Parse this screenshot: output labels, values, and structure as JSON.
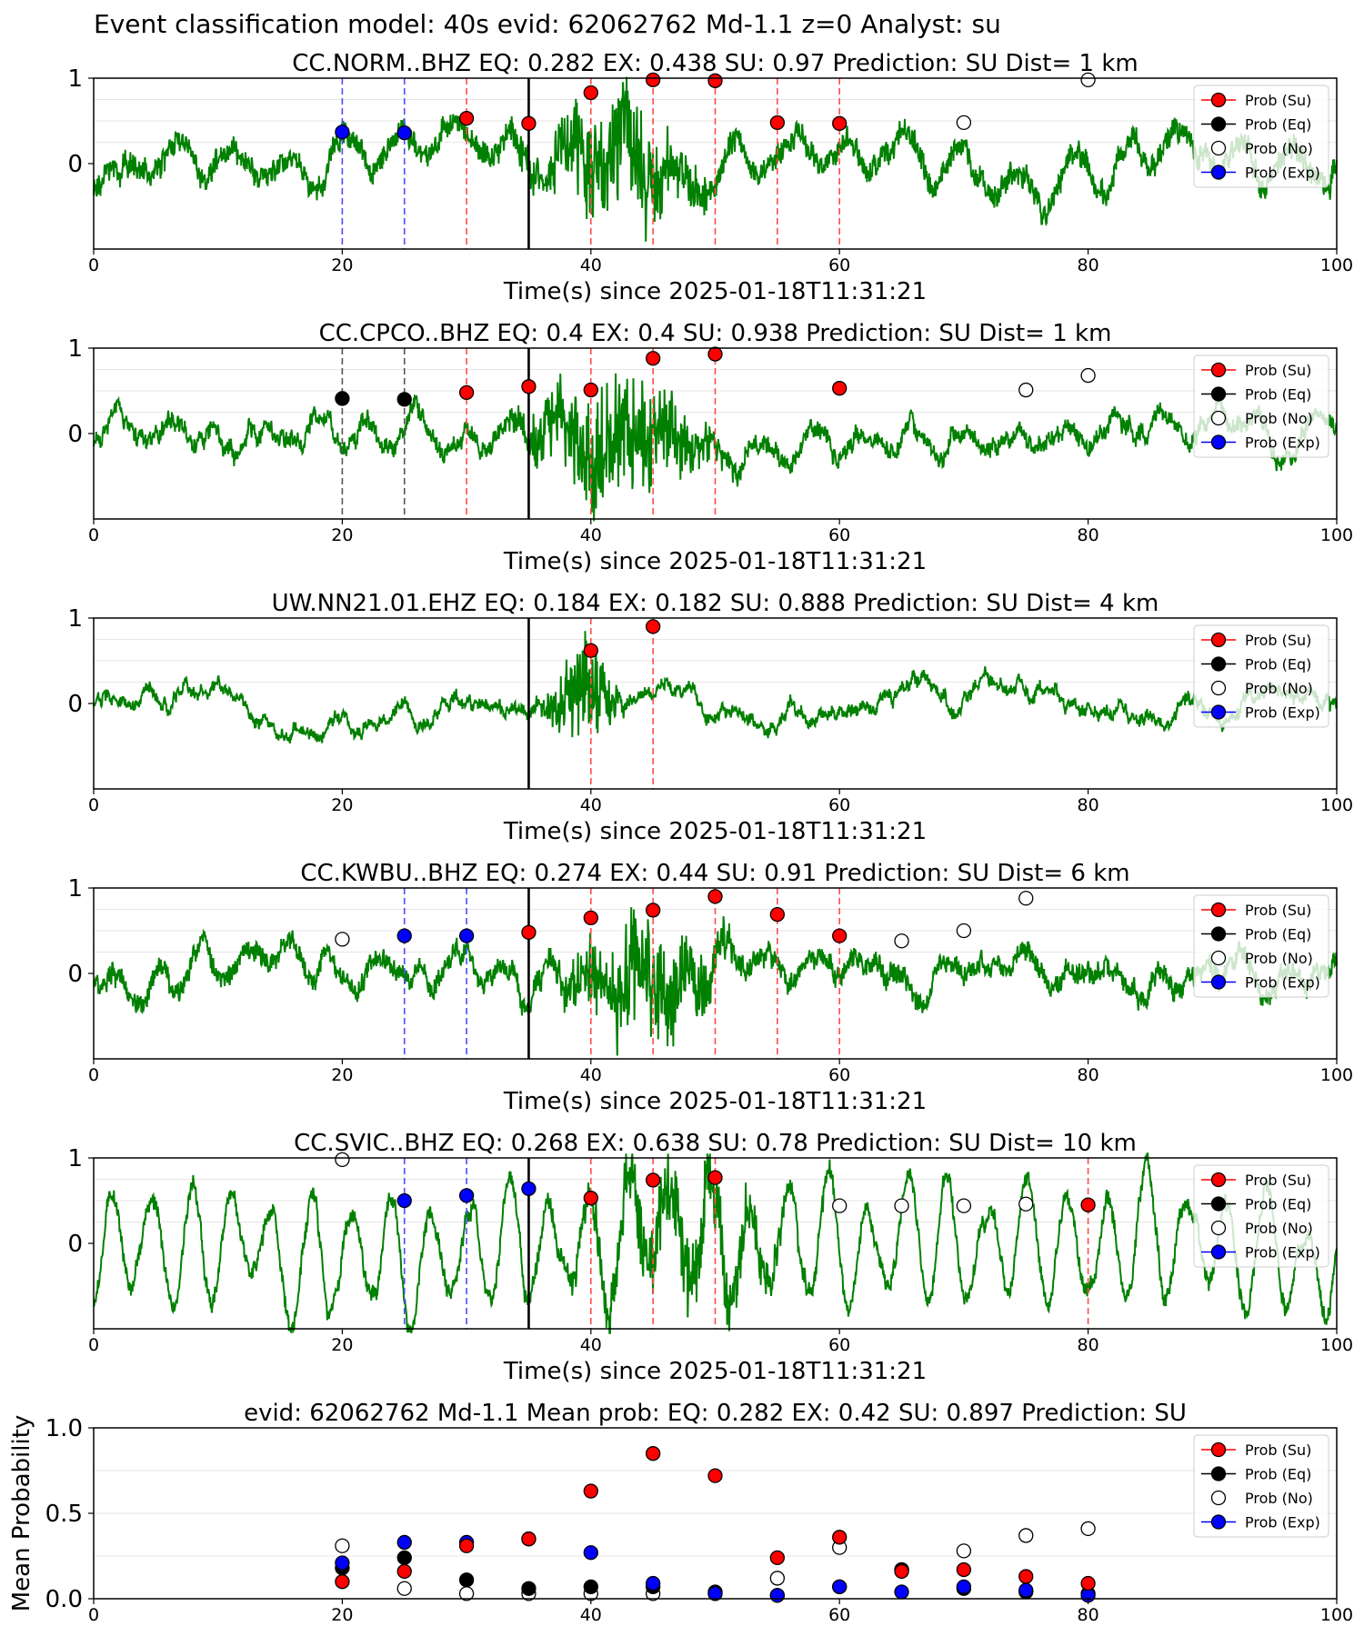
{
  "suptitle": "Event classification model: 40s evid: 62062762 Md-1.1 z=0 Analyst: su",
  "colors": {
    "trace": "#008000",
    "prob_su": "#ff0000",
    "prob_eq": "#000000",
    "prob_no": "#ffffff",
    "prob_exp": "#0000ff",
    "pick_su": "#ff4d4d",
    "pick_eq": "#555555",
    "pick_exp": "#4d4dff",
    "origin": "#000000"
  },
  "legend": [
    "Prob (Su)",
    "Prob (Eq)",
    "Prob (No)",
    "Prob (Exp)"
  ],
  "chart_data": [
    {
      "type": "line",
      "title": "CC.NORM..BHZ   EQ: 0.282  EX: 0.438  SU: 0.97   Prediction: SU    Dist= 1 km",
      "xlabel": "Time(s) since 2025-01-18T11:31:21",
      "ylabel": "",
      "xlim": [
        0,
        100
      ],
      "ylim": [
        -1,
        1
      ],
      "xticks": [
        "0",
        "20",
        "40",
        "60",
        "80",
        "100"
      ],
      "yticks": [
        "0",
        "1"
      ],
      "origin_time": 35,
      "waveform": {
        "noise": 0.12,
        "lf": 0.18,
        "lf_period": 4.5,
        "burst_center": 42,
        "burst_amp": 0.85,
        "burst_width": 5.5,
        "burst_freq": 1.6,
        "seed": 11
      },
      "picks": [
        {
          "t": 20,
          "class": "exp"
        },
        {
          "t": 25,
          "class": "exp"
        },
        {
          "t": 30,
          "class": "su"
        },
        {
          "t": 40,
          "class": "su"
        },
        {
          "t": 45,
          "class": "su"
        },
        {
          "t": 50,
          "class": "su"
        },
        {
          "t": 55,
          "class": "su"
        },
        {
          "t": 60,
          "class": "su"
        }
      ],
      "series": [
        {
          "name": "Prob (Su)",
          "x": [
            30,
            35,
            40,
            45,
            50,
            55,
            60
          ],
          "y": [
            0.53,
            0.47,
            0.83,
            0.98,
            0.97,
            0.48,
            0.47
          ]
        },
        {
          "name": "Prob (Eq)",
          "x": [],
          "y": []
        },
        {
          "name": "Prob (No)",
          "x": [
            70,
            80
          ],
          "y": [
            0.48,
            0.98
          ]
        },
        {
          "name": "Prob (Exp)",
          "x": [
            20,
            25
          ],
          "y": [
            0.37,
            0.36
          ]
        }
      ]
    },
    {
      "type": "line",
      "title": "CC.CPCO..BHZ   EQ: 0.4  EX: 0.4  SU: 0.938   Prediction: SU    Dist= 1 km",
      "xlabel": "Time(s) since 2025-01-18T11:31:21",
      "ylabel": "",
      "xlim": [
        0,
        100
      ],
      "ylim": [
        -1,
        1
      ],
      "xticks": [
        "0",
        "20",
        "40",
        "60",
        "80",
        "100"
      ],
      "yticks": [
        "0",
        "1"
      ],
      "origin_time": 35,
      "waveform": {
        "noise": 0.08,
        "lf": 0.1,
        "lf_period": 4.0,
        "burst_center": 42,
        "burst_amp": 0.9,
        "burst_width": 6,
        "burst_freq": 1.6,
        "seed": 23
      },
      "picks": [
        {
          "t": 20,
          "class": "eq"
        },
        {
          "t": 25,
          "class": "eq"
        },
        {
          "t": 30,
          "class": "su"
        },
        {
          "t": 40,
          "class": "su"
        },
        {
          "t": 45,
          "class": "su"
        },
        {
          "t": 50,
          "class": "su"
        }
      ],
      "series": [
        {
          "name": "Prob (Su)",
          "x": [
            30,
            35,
            40,
            45,
            50,
            60
          ],
          "y": [
            0.48,
            0.55,
            0.51,
            0.88,
            0.93,
            0.53
          ]
        },
        {
          "name": "Prob (Eq)",
          "x": [
            20,
            25
          ],
          "y": [
            0.41,
            0.4
          ]
        },
        {
          "name": "Prob (No)",
          "x": [
            75,
            80
          ],
          "y": [
            0.51,
            0.68
          ]
        },
        {
          "name": "Prob (Exp)",
          "x": [],
          "y": []
        }
      ]
    },
    {
      "type": "line",
      "title": "UW.NN21.01.EHZ   EQ: 0.184  EX: 0.182  SU: 0.888   Prediction: SU    Dist= 4 km",
      "xlabel": "Time(s) since 2025-01-18T11:31:21",
      "ylabel": "",
      "xlim": [
        0,
        100
      ],
      "ylim": [
        -1,
        1
      ],
      "xticks": [
        "0",
        "20",
        "40",
        "60",
        "80",
        "100"
      ],
      "yticks": [
        "0",
        "1"
      ],
      "origin_time": 35,
      "waveform": {
        "noise": 0.05,
        "lf": 0.0,
        "lf_period": 4.0,
        "burst_center": 39.5,
        "burst_amp": 0.75,
        "burst_width": 2.5,
        "burst_freq": 2.5,
        "seed": 37
      },
      "picks": [
        {
          "t": 40,
          "class": "su"
        },
        {
          "t": 45,
          "class": "su"
        }
      ],
      "series": [
        {
          "name": "Prob (Su)",
          "x": [
            40,
            45
          ],
          "y": [
            0.62,
            0.9
          ]
        },
        {
          "name": "Prob (Eq)",
          "x": [],
          "y": []
        },
        {
          "name": "Prob (No)",
          "x": [],
          "y": []
        },
        {
          "name": "Prob (Exp)",
          "x": [],
          "y": []
        }
      ]
    },
    {
      "type": "line",
      "title": "CC.KWBU..BHZ   EQ: 0.274  EX: 0.44  SU: 0.91   Prediction: SU    Dist= 6 km",
      "xlabel": "Time(s) since 2025-01-18T11:31:21",
      "ylabel": "",
      "xlim": [
        0,
        100
      ],
      "ylim": [
        -1,
        1
      ],
      "xticks": [
        "0",
        "20",
        "40",
        "60",
        "80",
        "100"
      ],
      "yticks": [
        "0",
        "1"
      ],
      "origin_time": 35,
      "waveform": {
        "noise": 0.1,
        "lf": 0.12,
        "lf_period": 3.5,
        "burst_center": 44,
        "burst_amp": 0.85,
        "burst_width": 5.5,
        "burst_freq": 1.6,
        "seed": 51
      },
      "picks": [
        {
          "t": 25,
          "class": "exp"
        },
        {
          "t": 30,
          "class": "exp"
        },
        {
          "t": 40,
          "class": "su"
        },
        {
          "t": 45,
          "class": "su"
        },
        {
          "t": 50,
          "class": "su"
        },
        {
          "t": 55,
          "class": "su"
        },
        {
          "t": 60,
          "class": "su"
        }
      ],
      "series": [
        {
          "name": "Prob (Su)",
          "x": [
            35,
            40,
            45,
            50,
            55,
            60
          ],
          "y": [
            0.48,
            0.65,
            0.74,
            0.9,
            0.69,
            0.44
          ]
        },
        {
          "name": "Prob (Eq)",
          "x": [],
          "y": []
        },
        {
          "name": "Prob (No)",
          "x": [
            20,
            65,
            70,
            75
          ],
          "y": [
            0.4,
            0.38,
            0.5,
            0.88
          ]
        },
        {
          "name": "Prob (Exp)",
          "x": [
            25,
            30
          ],
          "y": [
            0.44,
            0.44
          ]
        }
      ]
    },
    {
      "type": "line",
      "title": "CC.SVIC..BHZ   EQ: 0.268  EX: 0.638  SU: 0.78   Prediction: SU    Dist= 10 km",
      "xlabel": "Time(s) since 2025-01-18T11:31:21",
      "ylabel": "",
      "xlim": [
        0,
        100
      ],
      "ylim": [
        -1,
        1
      ],
      "xticks": [
        "0",
        "20",
        "40",
        "60",
        "80",
        "100"
      ],
      "yticks": [
        "0",
        "1"
      ],
      "origin_time": 35,
      "waveform": {
        "noise": 0.08,
        "lf": 0.55,
        "lf_period": 3.2,
        "burst_center": 47,
        "burst_amp": 0.55,
        "burst_width": 8,
        "burst_freq": 1.2,
        "seed": 73
      },
      "picks": [
        {
          "t": 25,
          "class": "exp"
        },
        {
          "t": 30,
          "class": "exp"
        },
        {
          "t": 40,
          "class": "su"
        },
        {
          "t": 45,
          "class": "su"
        },
        {
          "t": 50,
          "class": "su"
        },
        {
          "t": 80,
          "class": "su"
        }
      ],
      "series": [
        {
          "name": "Prob (Su)",
          "x": [
            40,
            45,
            50,
            80
          ],
          "y": [
            0.53,
            0.74,
            0.77,
            0.45
          ]
        },
        {
          "name": "Prob (Eq)",
          "x": [],
          "y": []
        },
        {
          "name": "Prob (No)",
          "x": [
            20,
            60,
            65,
            70,
            75
          ],
          "y": [
            0.98,
            0.44,
            0.44,
            0.44,
            0.46
          ]
        },
        {
          "name": "Prob (Exp)",
          "x": [
            25,
            30,
            35
          ],
          "y": [
            0.5,
            0.56,
            0.64
          ]
        }
      ]
    },
    {
      "type": "scatter",
      "title": "evid: 62062762  Md-1.1   Mean prob:   EQ: 0.282  EX: 0.42  SU: 0.897   Prediction: SU",
      "xlabel": "",
      "ylabel": "Mean Probability",
      "xlim": [
        0,
        100
      ],
      "ylim": [
        0,
        1
      ],
      "xticks": [
        "0",
        "20",
        "40",
        "60",
        "80",
        "100"
      ],
      "yticks": [
        "0.0",
        "0.5",
        "1.0"
      ],
      "series": [
        {
          "name": "Prob (No)",
          "x": [
            20,
            25,
            30,
            35,
            40,
            45,
            50,
            55,
            60,
            65,
            70,
            75,
            80
          ],
          "y": [
            0.31,
            0.06,
            0.03,
            0.03,
            0.03,
            0.03,
            0.03,
            0.12,
            0.3,
            0.17,
            0.28,
            0.37,
            0.41
          ]
        },
        {
          "name": "Prob (Eq)",
          "x": [
            20,
            25,
            30,
            35,
            40,
            45,
            50,
            55,
            60,
            65,
            70,
            75,
            80
          ],
          "y": [
            0.18,
            0.24,
            0.11,
            0.06,
            0.07,
            0.07,
            0.04,
            0.02,
            0.07,
            0.17,
            0.06,
            0.04,
            0.03
          ]
        },
        {
          "name": "Prob (Exp)",
          "x": [
            20,
            25,
            30,
            35,
            40,
            45,
            50,
            55,
            60,
            65,
            70,
            75,
            80
          ],
          "y": [
            0.21,
            0.33,
            0.33,
            0.35,
            0.27,
            0.09,
            0.03,
            0.02,
            0.07,
            0.04,
            0.07,
            0.05,
            0.02
          ]
        },
        {
          "name": "Prob (Su)",
          "x": [
            20,
            25,
            30,
            35,
            40,
            45,
            50,
            55,
            60,
            65,
            70,
            75,
            80
          ],
          "y": [
            0.1,
            0.16,
            0.31,
            0.35,
            0.63,
            0.85,
            0.72,
            0.24,
            0.36,
            0.16,
            0.17,
            0.13,
            0.09
          ]
        }
      ]
    }
  ]
}
